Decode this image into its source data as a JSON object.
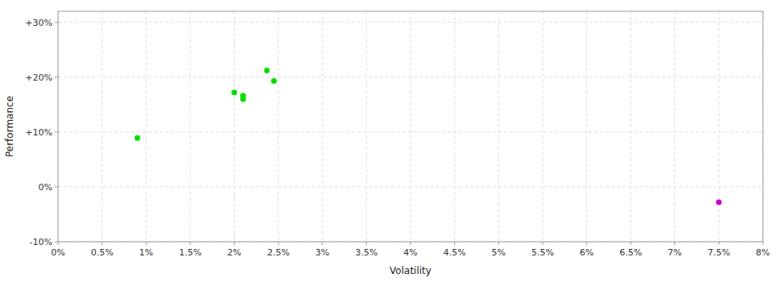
{
  "chart_data": {
    "type": "scatter",
    "xlabel": "Volatility",
    "ylabel": "Performance",
    "xlim": [
      0.0,
      0.08
    ],
    "ylim": [
      -0.1,
      0.32
    ],
    "xticks": [
      {
        "value": 0.0,
        "label": "0%"
      },
      {
        "value": 0.005,
        "label": "0.5%"
      },
      {
        "value": 0.01,
        "label": "1%"
      },
      {
        "value": 0.015,
        "label": "1.5%"
      },
      {
        "value": 0.02,
        "label": "2%"
      },
      {
        "value": 0.025,
        "label": "2.5%"
      },
      {
        "value": 0.03,
        "label": "3%"
      },
      {
        "value": 0.035,
        "label": "3.5%"
      },
      {
        "value": 0.04,
        "label": "4%"
      },
      {
        "value": 0.045,
        "label": "4.5%"
      },
      {
        "value": 0.05,
        "label": "5%"
      },
      {
        "value": 0.055,
        "label": "5.5%"
      },
      {
        "value": 0.06,
        "label": "6%"
      },
      {
        "value": 0.065,
        "label": "6.5%"
      },
      {
        "value": 0.07,
        "label": "7%"
      },
      {
        "value": 0.075,
        "label": "7.5%"
      },
      {
        "value": 0.08,
        "label": "8%"
      }
    ],
    "yticks": [
      {
        "value": -0.1,
        "label": "-10%"
      },
      {
        "value": 0.0,
        "label": "0%"
      },
      {
        "value": 0.1,
        "label": "+10%"
      },
      {
        "value": 0.2,
        "label": "+20%"
      },
      {
        "value": 0.3,
        "label": "+30%"
      }
    ],
    "grid": true,
    "series": [
      {
        "color": "#00dd00",
        "x": [
          0.009,
          0.02,
          0.021,
          0.021,
          0.0237,
          0.0245
        ],
        "values": [
          0.089,
          0.172,
          0.166,
          0.16,
          0.212,
          0.193
        ]
      },
      {
        "color": "#cc00cc",
        "x": [
          0.075
        ],
        "values": [
          -0.028
        ]
      }
    ]
  }
}
